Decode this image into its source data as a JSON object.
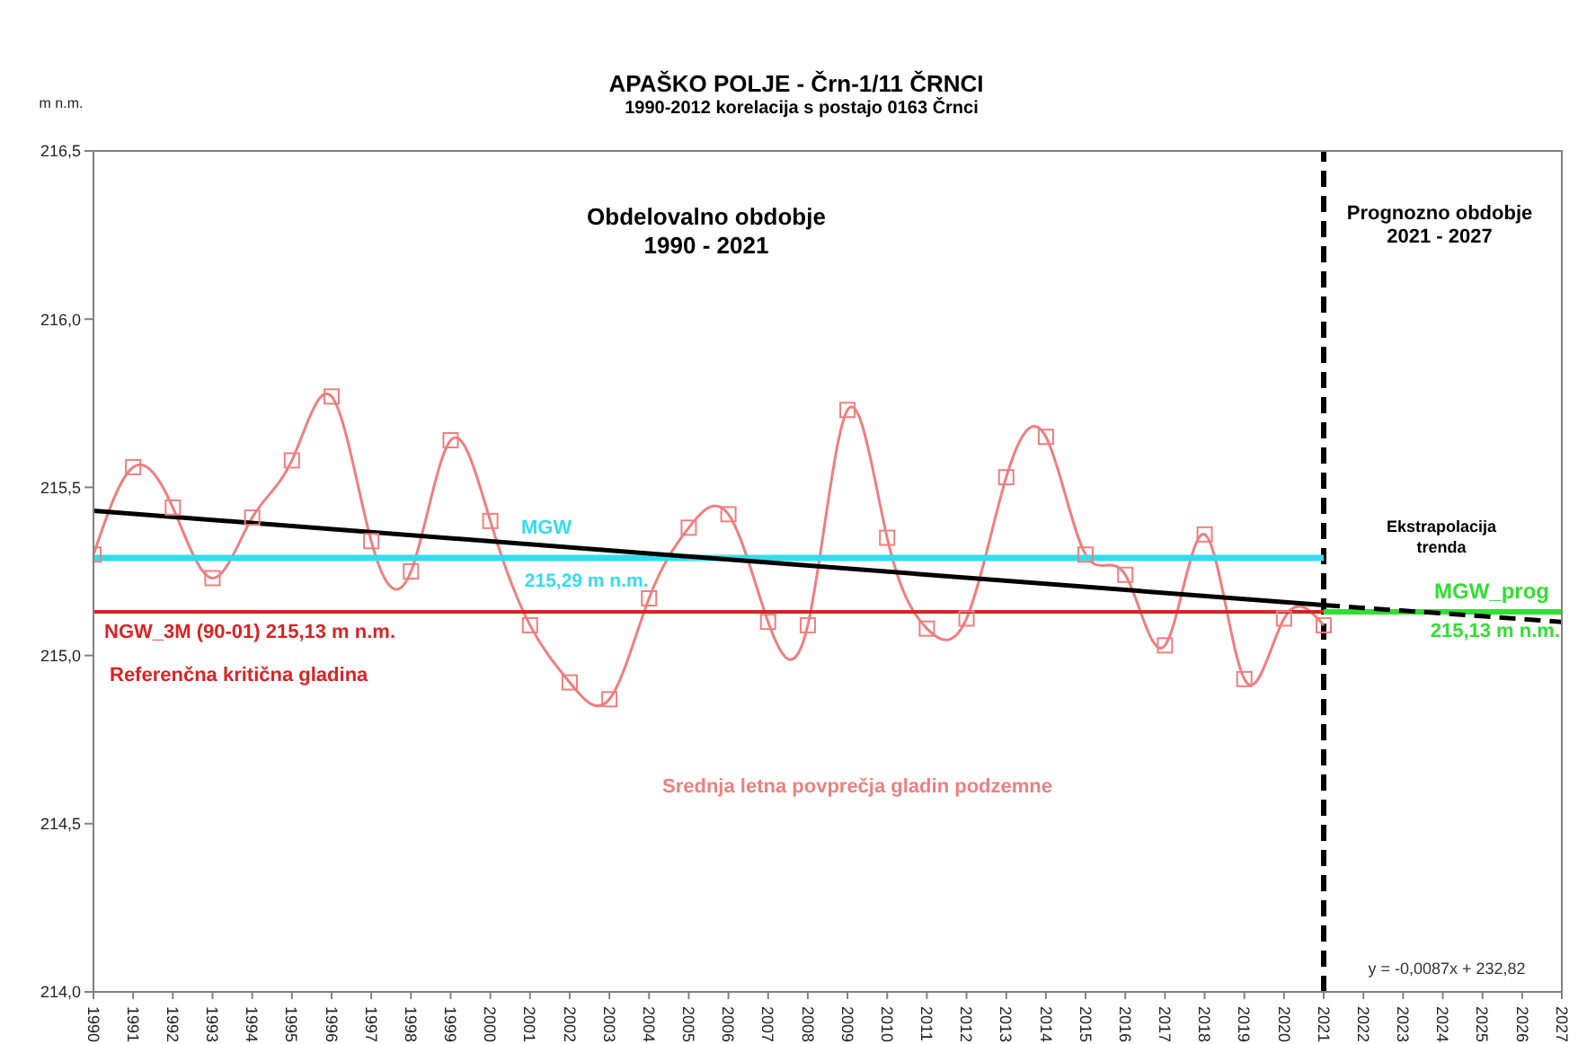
{
  "chart_data": {
    "type": "line",
    "title": "APAŠKO POLJE - Črn-1/11 ČRNCI",
    "subtitle": "1990-2012 korelacija s postajo 0163 Črnci",
    "ylabel": "m n.m.",
    "xlim": [
      1990,
      2027
    ],
    "xticks": [
      1990,
      1991,
      1992,
      1993,
      1994,
      1995,
      1996,
      1997,
      1998,
      1999,
      2000,
      2001,
      2002,
      2003,
      2004,
      2005,
      2006,
      2007,
      2008,
      2009,
      2010,
      2011,
      2012,
      2013,
      2014,
      2015,
      2016,
      2017,
      2018,
      2019,
      2020,
      2021,
      2022,
      2023,
      2024,
      2025,
      2026,
      2027
    ],
    "ylim": [
      214,
      216.5
    ],
    "yticks": [
      {
        "value": 214,
        "label": "214,0"
      },
      {
        "value": 214.5,
        "label": "214,5"
      },
      {
        "value": 215,
        "label": "215,0"
      },
      {
        "value": 215.5,
        "label": "215,5"
      },
      {
        "value": 216,
        "label": "216,0"
      },
      {
        "value": 216.5,
        "label": "216,5"
      }
    ],
    "marker": "square",
    "series": [
      {
        "name": "Srednja letna povprečja gladin podzemne",
        "color": "#ee7f7f",
        "x": [
          1990,
          1991,
          1992,
          1993,
          1994,
          1995,
          1996,
          1997,
          1998,
          1999,
          2000,
          2001,
          2002,
          2003,
          2004,
          2005,
          2006,
          2007,
          2008,
          2009,
          2010,
          2011,
          2012,
          2013,
          2014,
          2015,
          2016,
          2017,
          2018,
          2019,
          2020,
          2021
        ],
        "values": [
          215.3,
          215.56,
          215.44,
          215.23,
          215.41,
          215.58,
          215.77,
          215.34,
          215.25,
          215.64,
          215.4,
          215.09,
          214.92,
          214.87,
          215.17,
          215.38,
          215.42,
          215.1,
          215.09,
          215.73,
          215.35,
          215.08,
          215.11,
          215.53,
          215.65,
          215.3,
          215.24,
          215.03,
          215.36,
          214.93,
          215.11,
          215.09
        ]
      },
      {
        "name": "MGW",
        "color": "#33dded",
        "x": [
          1990,
          2021
        ],
        "values": [
          215.29,
          215.29
        ],
        "marker": "none"
      },
      {
        "name": "NGW_3M (90-01) 215,13 m n.m.",
        "color": "#d92323",
        "x": [
          1990,
          2021
        ],
        "values": [
          215.13,
          215.13
        ],
        "marker": "none"
      },
      {
        "name": "MGW_prog",
        "color": "#33dd33",
        "x": [
          2021,
          2027
        ],
        "values": [
          215.13,
          215.13
        ],
        "marker": "none"
      },
      {
        "color": "#000000",
        "x": [
          1990,
          2021
        ],
        "values": [
          215.43,
          215.15
        ],
        "marker": "none"
      },
      {
        "color": "#000000",
        "x": [
          2021,
          2027
        ],
        "values": [
          215.15,
          215.1
        ],
        "marker": "none",
        "line_style": "dashed"
      }
    ],
    "ref_lines": [
      {
        "axis": "x",
        "value": 2021,
        "color": "#000000",
        "line_style": "dashed"
      }
    ],
    "annotations": [
      "Obdelovalno obdobje\n1990 - 2021",
      "Prognozno obdobje\n2021 - 2027",
      {
        "text": "215,29 m n.m.",
        "x": 2001,
        "y": 215.29
      },
      "Referenčna kritična gladina",
      "Ekstrapolacija\ntrenda",
      {
        "text": "215,13 m n.m.",
        "x": 2027,
        "y": 215.13
      },
      "y = -0,0087x + 232,82"
    ]
  }
}
